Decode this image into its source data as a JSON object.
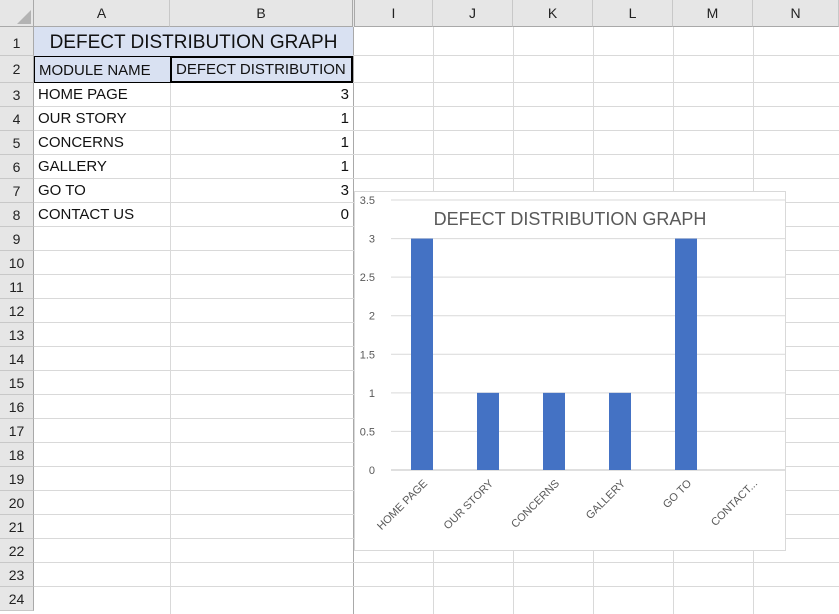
{
  "sheet": {
    "columns": [
      "A",
      "B",
      "I",
      "J",
      "K",
      "L",
      "M",
      "N"
    ],
    "rows": [
      "1",
      "2",
      "3",
      "4",
      "5",
      "6",
      "7",
      "8",
      "9",
      "10",
      "11",
      "12",
      "13",
      "14",
      "15",
      "16",
      "17",
      "18",
      "19",
      "20",
      "21",
      "22",
      "23",
      "24"
    ],
    "title": "DEFECT DISTRIBUTION GRAPH",
    "headers": {
      "module": "MODULE NAME",
      "defects": "DEFECT DISTRIBUTION"
    },
    "data_rows": [
      {
        "module": "HOME PAGE",
        "defects": "3"
      },
      {
        "module": "OUR STORY",
        "defects": "1"
      },
      {
        "module": "CONCERNS",
        "defects": "1"
      },
      {
        "module": "GALLERY",
        "defects": "1"
      },
      {
        "module": "GO TO",
        "defects": "3"
      },
      {
        "module": "CONTACT US",
        "defects": "0"
      }
    ],
    "colors": {
      "title_fill": "#d9e1f2",
      "header_fill": "#d9e1f2",
      "bar": "#4472c4",
      "header_bg": "#e6e6e6",
      "grid": "#d9d9d9"
    }
  },
  "chart_data": {
    "type": "bar",
    "title": "DEFECT DISTRIBUTION GRAPH",
    "categories": [
      "HOME PAGE",
      "OUR STORY",
      "CONCERNS",
      "GALLERY",
      "GO TO",
      "CONTACT..."
    ],
    "values": [
      3,
      1,
      1,
      1,
      3,
      0
    ],
    "ylim": [
      0,
      3.5
    ],
    "yticks": [
      "0",
      "0.5",
      "1",
      "1.5",
      "2",
      "2.5",
      "3",
      "3.5"
    ],
    "xlabel": "",
    "ylabel": "",
    "grid": true,
    "legend": "none"
  }
}
